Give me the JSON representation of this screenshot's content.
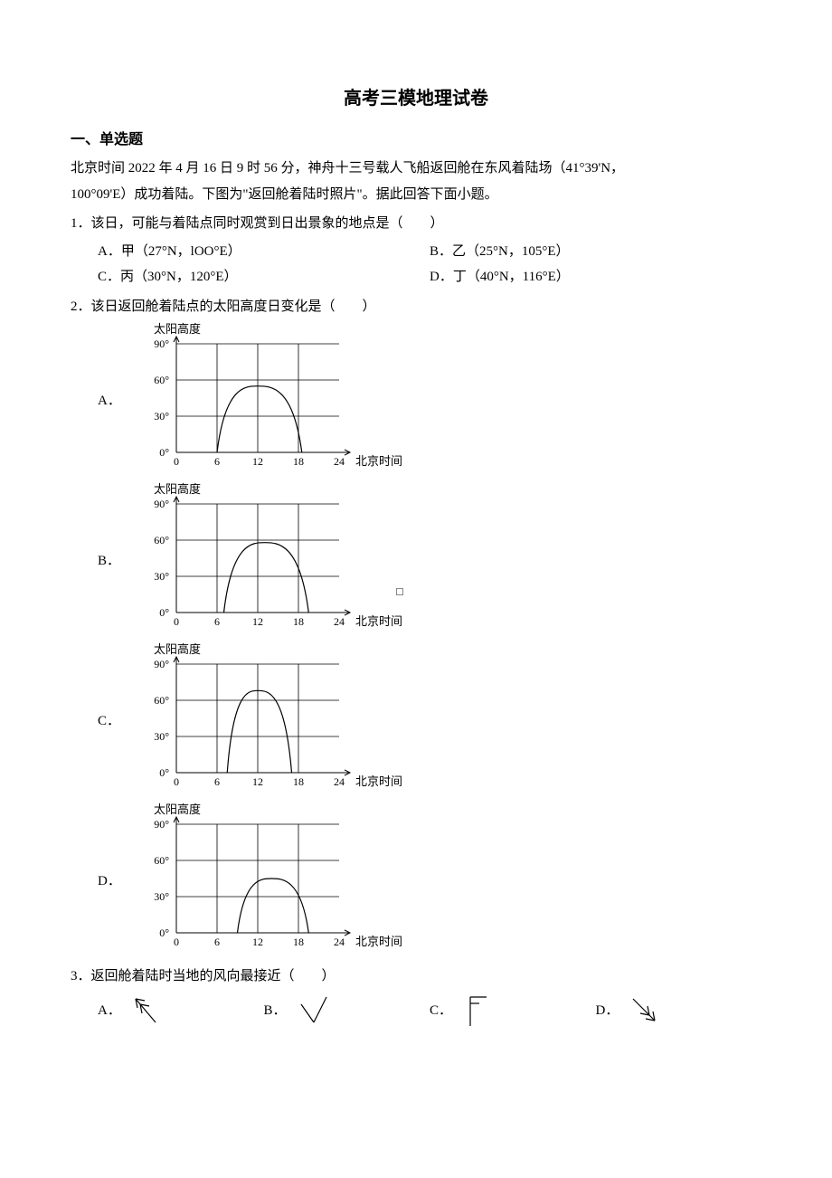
{
  "title": "高考三模地理试卷",
  "section": "一、单选题",
  "intro_line1": "北京时间 2022 年 4 月 16 日 9 时 56 分，神舟十三号载人飞船返回舱在东风着陆场（41°39'N，",
  "intro_line2": "100°09'E）成功着陆。下图为\"返回舱着陆时照片\"。据此回答下面小题。",
  "q1": {
    "text": "1．该日，可能与着陆点同时观赏到日出景象的地点是（　　）",
    "opts": {
      "a": "A．甲（27°N，lOO°E）",
      "b": "B．乙（25°N，105°E）",
      "c": "C．丙（30°N，120°E）",
      "d": "D．丁（40°N，116°E）"
    }
  },
  "q2": {
    "text": "2．该日返回舱着陆点的太阳高度日变化是（　　）",
    "chart_common": {
      "y_label": "太阳高度",
      "y_ticks": [
        "90°",
        "60°",
        "30°",
        "0°"
      ],
      "x_ticks": [
        "0",
        "6",
        "12",
        "18",
        "24"
      ],
      "x_label": "北京时间",
      "stroke": "#000000",
      "stroke_width": 1,
      "bg": "#ffffff"
    },
    "options": {
      "a": {
        "letter": "A．",
        "rise": 6,
        "peak_x": 12,
        "set": 18.5,
        "peak_y": 55
      },
      "b": {
        "letter": "B．",
        "rise": 7,
        "peak_x": 13,
        "set": 19.5,
        "peak_y": 58
      },
      "c": {
        "letter": "C．",
        "rise": 7.5,
        "peak_x": 12,
        "set": 17,
        "peak_y": 68
      },
      "d": {
        "letter": "D．",
        "rise": 9,
        "peak_x": 14,
        "set": 19.5,
        "peak_y": 45
      }
    }
  },
  "q3": {
    "text": "3．返回舱着陆时当地的风向最接近（　　）",
    "opts": {
      "a": "A．",
      "b": "B．",
      "c": "C．",
      "d": "D．"
    }
  }
}
